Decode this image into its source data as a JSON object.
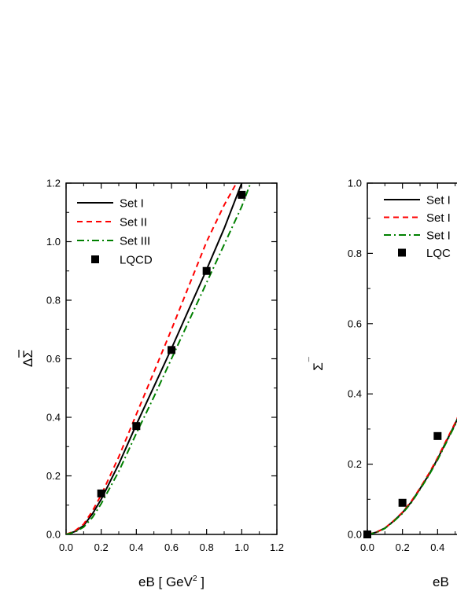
{
  "chart_data": [
    {
      "type": "line",
      "xlabel": "eB [ GeV² ]",
      "xlabel_base": "eB [ GeV",
      "xlabel_sup": "2",
      "xlabel_tail": " ]",
      "ylabel": "ΔΣ̄",
      "ylabel_delta": "Δ",
      "ylabel_sigma": "Σ",
      "xlim": [
        0.0,
        1.2
      ],
      "ylim": [
        0.0,
        1.2
      ],
      "xticks": [
        "0.0",
        "0.2",
        "0.4",
        "0.6",
        "0.8",
        "1.0",
        "1.2"
      ],
      "yticks": [
        "0.0",
        "0.2",
        "0.4",
        "0.6",
        "0.8",
        "1.0",
        "1.2"
      ],
      "legend_position": "top-left",
      "series": [
        {
          "name": "Set I",
          "style": "solid",
          "color": "#000000",
          "x": [
            0.0,
            0.05,
            0.1,
            0.15,
            0.2,
            0.3,
            0.4,
            0.5,
            0.6,
            0.7,
            0.8,
            0.9,
            1.0
          ],
          "y": [
            0.0,
            0.01,
            0.03,
            0.07,
            0.12,
            0.24,
            0.375,
            0.505,
            0.635,
            0.77,
            0.905,
            1.045,
            1.2
          ]
        },
        {
          "name": "Set II",
          "style": "dash",
          "color": "#ff0000",
          "x": [
            0.0,
            0.05,
            0.1,
            0.15,
            0.2,
            0.3,
            0.4,
            0.5,
            0.6,
            0.7,
            0.8,
            0.9,
            0.97
          ],
          "y": [
            0.0,
            0.012,
            0.035,
            0.08,
            0.135,
            0.265,
            0.41,
            0.555,
            0.7,
            0.85,
            1.0,
            1.125,
            1.2
          ]
        },
        {
          "name": "Set III",
          "style": "dashdot",
          "color": "#008000",
          "x": [
            0.0,
            0.05,
            0.1,
            0.15,
            0.2,
            0.3,
            0.4,
            0.5,
            0.6,
            0.7,
            0.8,
            0.9,
            1.0,
            1.05
          ],
          "y": [
            0.0,
            0.008,
            0.025,
            0.058,
            0.105,
            0.215,
            0.345,
            0.47,
            0.6,
            0.73,
            0.86,
            0.99,
            1.12,
            1.2
          ]
        },
        {
          "name": "LQCD",
          "style": "marker",
          "color": "#000000",
          "x": [
            0.2,
            0.4,
            0.6,
            0.8,
            1.0
          ],
          "y": [
            0.14,
            0.37,
            0.63,
            0.9,
            1.16
          ]
        }
      ]
    },
    {
      "type": "line",
      "xlabel": "eB",
      "ylabel": "Σ¯",
      "ylabel_sigma": "Σ",
      "ylabel_sup": "¯",
      "xlim": [
        0.0,
        1.2
      ],
      "ylim": [
        0.0,
        1.0
      ],
      "xticks": [
        "0.0",
        "0.2",
        "0.4"
      ],
      "yticks": [
        "0.0",
        "0.2",
        "0.4",
        "0.6",
        "0.8",
        "1.0"
      ],
      "legend_position": "top-left",
      "series": [
        {
          "name": "Set I",
          "label_visible": "Set I",
          "style": "solid",
          "color": "#000000",
          "x": [
            0.0,
            0.05,
            0.1,
            0.15,
            0.2,
            0.25,
            0.3,
            0.35,
            0.4,
            0.45,
            0.5,
            0.55
          ],
          "y": [
            0.0,
            0.006,
            0.018,
            0.038,
            0.062,
            0.092,
            0.13,
            0.17,
            0.215,
            0.265,
            0.315,
            0.37
          ]
        },
        {
          "name": "Set II",
          "label_visible": "Set I",
          "style": "dash",
          "color": "#ff0000",
          "x": [
            0.0,
            0.05,
            0.1,
            0.15,
            0.2,
            0.25,
            0.3,
            0.35,
            0.4,
            0.45,
            0.5,
            0.55
          ],
          "y": [
            0.0,
            0.006,
            0.018,
            0.039,
            0.063,
            0.094,
            0.132,
            0.173,
            0.218,
            0.268,
            0.318,
            0.372
          ]
        },
        {
          "name": "Set III",
          "label_visible": "Set I",
          "style": "dashdot",
          "color": "#008000",
          "x": [
            0.0,
            0.05,
            0.1,
            0.15,
            0.2,
            0.25,
            0.3,
            0.35,
            0.4,
            0.45,
            0.5,
            0.55
          ],
          "y": [
            0.0,
            0.005,
            0.017,
            0.037,
            0.06,
            0.09,
            0.128,
            0.168,
            0.212,
            0.262,
            0.312,
            0.366
          ]
        },
        {
          "name": "LQCD",
          "label_visible": "LQC",
          "style": "marker",
          "color": "#000000",
          "x": [
            0.0,
            0.2,
            0.4
          ],
          "y": [
            0.0,
            0.09,
            0.28
          ]
        }
      ]
    }
  ]
}
